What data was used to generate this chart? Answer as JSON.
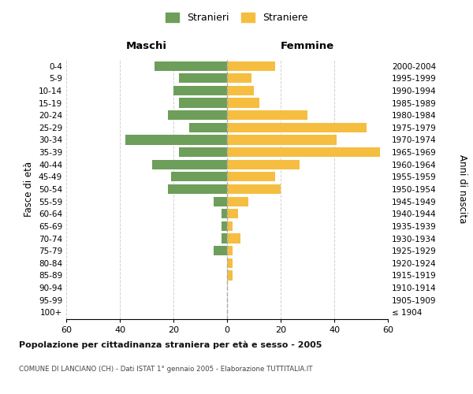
{
  "age_groups": [
    "100+",
    "95-99",
    "90-94",
    "85-89",
    "80-84",
    "75-79",
    "70-74",
    "65-69",
    "60-64",
    "55-59",
    "50-54",
    "45-49",
    "40-44",
    "35-39",
    "30-34",
    "25-29",
    "20-24",
    "15-19",
    "10-14",
    "5-9",
    "0-4"
  ],
  "birth_years": [
    "≤ 1904",
    "1905-1909",
    "1910-1914",
    "1915-1919",
    "1920-1924",
    "1925-1929",
    "1930-1934",
    "1935-1939",
    "1940-1944",
    "1945-1949",
    "1950-1954",
    "1955-1959",
    "1960-1964",
    "1965-1969",
    "1970-1974",
    "1975-1979",
    "1980-1984",
    "1985-1989",
    "1990-1994",
    "1995-1999",
    "2000-2004"
  ],
  "males": [
    0,
    0,
    0,
    0,
    0,
    5,
    2,
    2,
    2,
    5,
    22,
    21,
    28,
    18,
    38,
    14,
    22,
    18,
    20,
    18,
    27
  ],
  "females": [
    0,
    0,
    0,
    2,
    2,
    2,
    5,
    2,
    4,
    8,
    20,
    18,
    27,
    57,
    41,
    52,
    30,
    12,
    10,
    9,
    18
  ],
  "male_color": "#6d9e5a",
  "female_color": "#f5be41",
  "title": "Popolazione per cittadinanza straniera per età e sesso - 2005",
  "subtitle": "COMUNE DI LANCIANO (CH) - Dati ISTAT 1° gennaio 2005 - Elaborazione TUTTITALIA.IT",
  "header_left": "Maschi",
  "header_right": "Femmine",
  "ylabel_left": "Fasce di età",
  "ylabel_right": "Anni di nascita",
  "legend_males": "Stranieri",
  "legend_females": "Straniere",
  "xlim": 60,
  "background_color": "#ffffff",
  "grid_color": "#d0d0d0"
}
